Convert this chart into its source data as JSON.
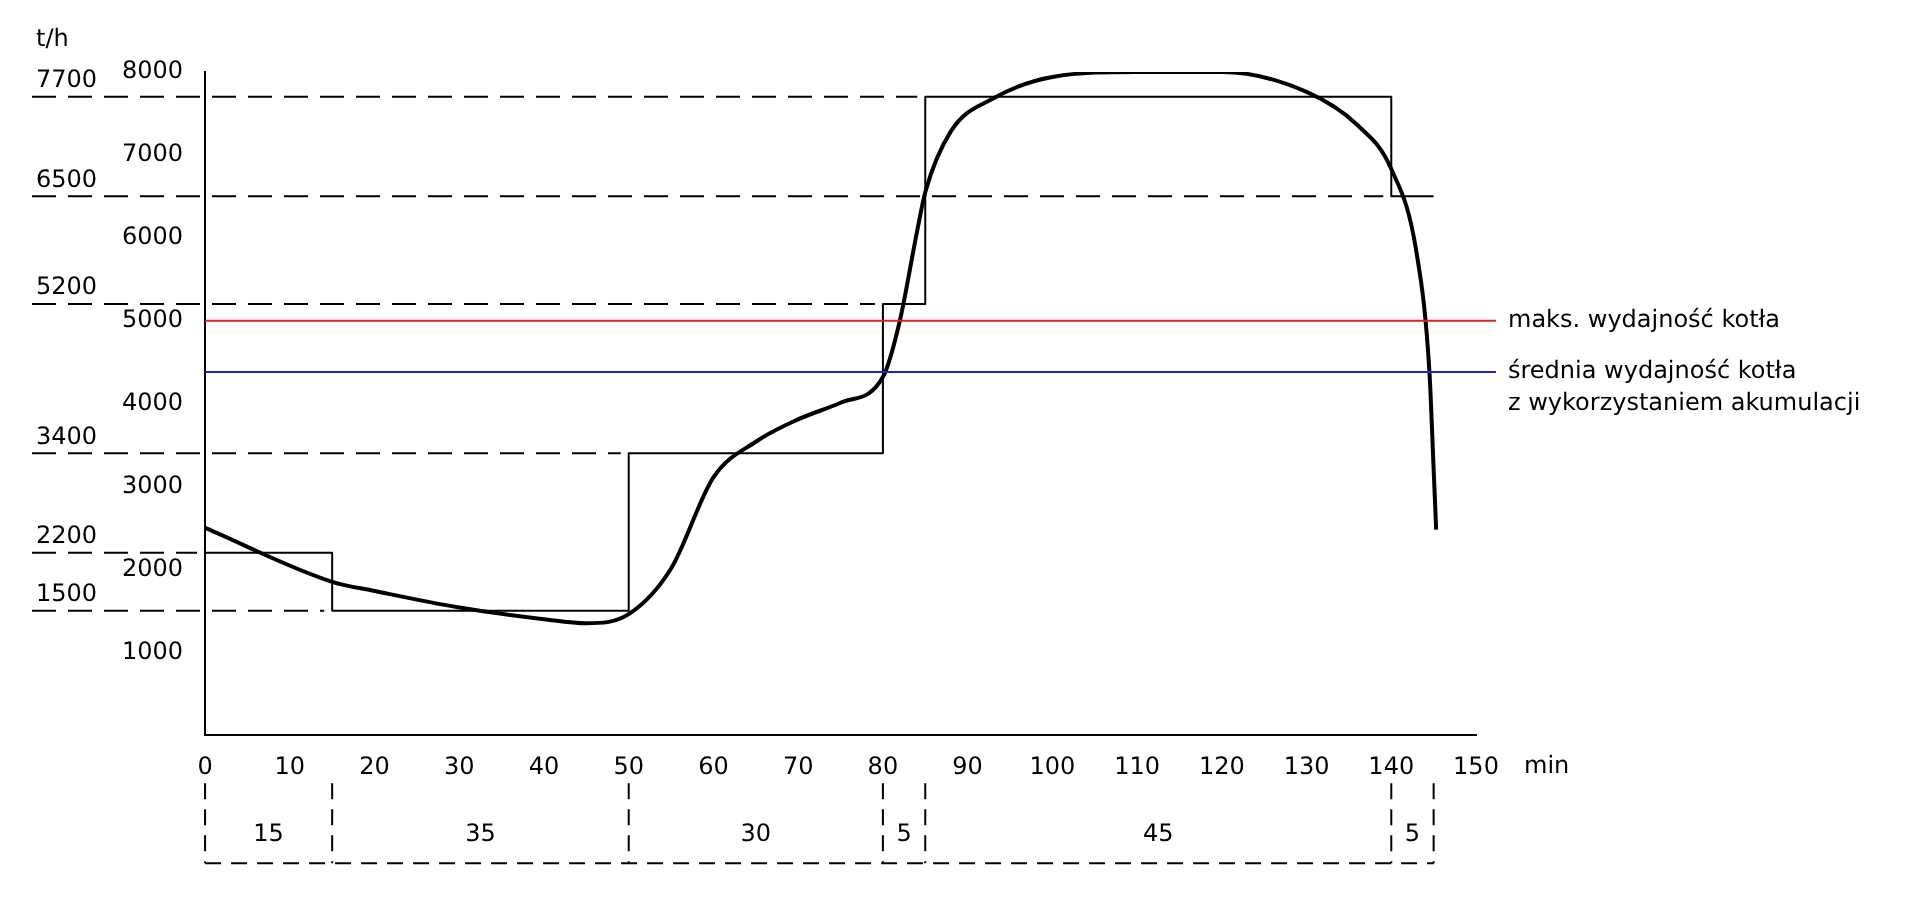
{
  "chart_data": {
    "type": "line",
    "ylabel": "t/h",
    "xlabel": "min",
    "xlim": [
      0,
      150
    ],
    "xticks": [
      0,
      10,
      20,
      30,
      40,
      50,
      60,
      70,
      80,
      90,
      100,
      110,
      120,
      130,
      140,
      150
    ],
    "ylim": [
      0,
      8000
    ],
    "yticks": [
      1000,
      2000,
      3000,
      4000,
      5000,
      6000,
      7000,
      8000
    ],
    "grid": false,
    "legend": false,
    "marker": "none",
    "series": [
      {
        "color": "#000000",
        "x": [
          0,
          15,
          20,
          30,
          40,
          45,
          50,
          55,
          60,
          65,
          70,
          75,
          80,
          82,
          84,
          85,
          88,
          93,
          100,
          110,
          120,
          130,
          136,
          140,
          143,
          144.5,
          145,
          145.3
        ],
        "values": [
          2500,
          1850,
          1740,
          1540,
          1400,
          1350,
          1460,
          2010,
          3110,
          3540,
          3810,
          4010,
          4320,
          5000,
          6060,
          6550,
          7280,
          7680,
          7940,
          8000,
          8000,
          7760,
          7360,
          6830,
          5810,
          4390,
          3210,
          2480
        ]
      },
      {
        "type": "step",
        "color": "#000000",
        "x": [
          0,
          15,
          50,
          80,
          85,
          140,
          145
        ],
        "values": [
          2200,
          1500,
          3400,
          5200,
          7700,
          6500,
          6500
        ]
      }
    ],
    "ref_lines": [
      {
        "axis": "y",
        "value": 7700,
        "label": "7700",
        "line_style": "dashed",
        "color": "#000000"
      },
      {
        "axis": "y",
        "value": 6500,
        "label": "6500",
        "line_style": "dashed",
        "color": "#000000"
      },
      {
        "axis": "y",
        "value": 5200,
        "label": "5200",
        "line_style": "dashed",
        "color": "#000000"
      },
      {
        "axis": "y",
        "value": 3400,
        "label": "3400",
        "line_style": "dashed",
        "color": "#000000"
      },
      {
        "axis": "y",
        "value": 2200,
        "label": "2200",
        "line_style": "dashed",
        "color": "#000000"
      },
      {
        "axis": "y",
        "value": 1500,
        "label": "1500",
        "line_style": "dashed",
        "color": "#000000"
      },
      {
        "axis": "y",
        "value": 5000,
        "label": "maks. wydajność kotła",
        "line_style": "solid",
        "color": "#dd2222"
      },
      {
        "axis": "y",
        "value": 4380,
        "label": "średnia wydajność kotła\nz wykorzystaniem akumulacji",
        "line_style": "solid",
        "color": "#2222cc"
      }
    ],
    "annotations": [
      "15",
      "35",
      "30",
      "5",
      "45",
      "5"
    ]
  }
}
